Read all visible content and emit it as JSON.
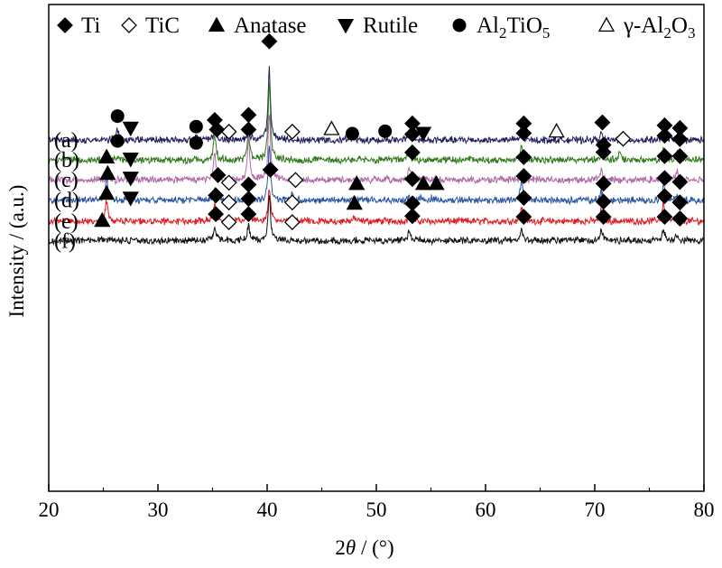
{
  "chart_data": {
    "type": "line",
    "xlabel": "2θ / (°)",
    "xlabel_parts": {
      "symbol": "2θ",
      "unit": " / (°)"
    },
    "ylabel": "Intensity / (a.u.)",
    "xlim": [
      20,
      80
    ],
    "xticks": [
      20,
      30,
      40,
      50,
      60,
      70,
      80
    ],
    "y_tick_labels": "none",
    "grid": false,
    "legend_position": "top",
    "legend": [
      {
        "marker": "diamond-filled",
        "name": "Ti"
      },
      {
        "marker": "diamond-open",
        "name": "TiC"
      },
      {
        "marker": "triangle-up-filled",
        "name": "Anatase"
      },
      {
        "marker": "triangle-down-filled",
        "name": "Rutile"
      },
      {
        "marker": "circle-filled",
        "name": "Al2TiO5",
        "display": [
          "Al",
          "2",
          "TiO",
          "5"
        ]
      },
      {
        "marker": "triangle-up-open",
        "name": "γ-Al2O3",
        "display": [
          "γ-Al",
          "2",
          "O",
          "3"
        ]
      }
    ],
    "series": [
      {
        "name": "(a)",
        "color": "#1f1f5c",
        "baseline": 0.85,
        "peaks": [
          {
            "x": 26.3,
            "h": 0.42
          },
          {
            "x": 33.5,
            "h": 0.18
          },
          {
            "x": 35.2,
            "h": 0.36
          },
          {
            "x": 38.3,
            "h": 0.48
          },
          {
            "x": 40.2,
            "h": 2.9
          },
          {
            "x": 45.5,
            "h": 0.05
          },
          {
            "x": 47.6,
            "h": 0.08
          },
          {
            "x": 53.0,
            "h": 0.26
          },
          {
            "x": 63.3,
            "h": 0.26
          },
          {
            "x": 70.6,
            "h": 0.26
          },
          {
            "x": 76.3,
            "h": 0.24
          },
          {
            "x": 77.5,
            "h": 0.18
          }
        ],
        "markers": [
          {
            "x": 26.3,
            "y": 1.83,
            "type": "circle-filled"
          },
          {
            "x": 27.5,
            "y": 1.34,
            "type": "triangle-down-filled"
          },
          {
            "x": 33.5,
            "y": 1.4,
            "type": "circle-filled"
          },
          {
            "x": 35.2,
            "y": 1.67,
            "type": "diamond-filled"
          },
          {
            "x": 36.5,
            "y": 1.19,
            "type": "diamond-open"
          },
          {
            "x": 38.3,
            "y": 1.88,
            "type": "diamond-filled"
          },
          {
            "x": 40.2,
            "y": 4.9,
            "type": "diamond-filled"
          },
          {
            "x": 42.3,
            "y": 1.19,
            "type": "diamond-open"
          },
          {
            "x": 45.9,
            "y": 1.31,
            "type": "triangle-up-open"
          },
          {
            "x": 47.8,
            "y": 1.11,
            "type": "circle-filled"
          },
          {
            "x": 50.8,
            "y": 1.21,
            "type": "circle-filled"
          },
          {
            "x": 53.3,
            "y": 1.53,
            "type": "diamond-filled"
          },
          {
            "x": 54.3,
            "y": 1.13,
            "type": "triangle-down-filled"
          },
          {
            "x": 63.5,
            "y": 1.53,
            "type": "diamond-filled"
          },
          {
            "x": 66.5,
            "y": 1.21,
            "type": "triangle-up-open"
          },
          {
            "x": 70.7,
            "y": 1.57,
            "type": "diamond-filled"
          },
          {
            "x": 76.4,
            "y": 1.45,
            "type": "diamond-filled"
          },
          {
            "x": 77.8,
            "y": 1.34,
            "type": "diamond-filled"
          }
        ]
      },
      {
        "name": "(b)",
        "color": "#2f7a1a",
        "baseline": 0.03,
        "peaks": [
          {
            "x": 26.3,
            "h": 0.06
          },
          {
            "x": 33.5,
            "h": 0.04
          },
          {
            "x": 35.2,
            "h": 1.05
          },
          {
            "x": 38.3,
            "h": 1.15
          },
          {
            "x": 40.2,
            "h": 3.2
          },
          {
            "x": 53.0,
            "h": 0.5
          },
          {
            "x": 63.3,
            "h": 0.62
          },
          {
            "x": 70.6,
            "h": 0.18
          },
          {
            "x": 72.3,
            "h": 0.35
          },
          {
            "x": 76.3,
            "h": 0.52
          },
          {
            "x": 77.5,
            "h": 0.28
          }
        ],
        "markers": [
          {
            "x": 26.3,
            "y": 0.81,
            "type": "circle-filled"
          },
          {
            "x": 33.5,
            "y": 0.73,
            "type": "circle-filled"
          },
          {
            "x": 35.4,
            "y": 1.28,
            "type": "diamond-filled"
          },
          {
            "x": 38.3,
            "y": 1.28,
            "type": "diamond-filled"
          },
          {
            "x": 53.3,
            "y": 1.09,
            "type": "diamond-filled"
          },
          {
            "x": 63.5,
            "y": 1.13,
            "type": "diamond-filled"
          },
          {
            "x": 70.8,
            "y": 0.65,
            "type": "diamond-filled"
          },
          {
            "x": 72.6,
            "y": 0.9,
            "type": "diamond-open"
          },
          {
            "x": 76.4,
            "y": 1.03,
            "type": "diamond-filled"
          },
          {
            "x": 77.8,
            "y": 0.89,
            "type": "diamond-filled"
          }
        ]
      },
      {
        "name": "(c)",
        "color": "#b06aa8",
        "baseline": -0.78,
        "peaks": [
          {
            "x": 25.3,
            "h": 0.1
          },
          {
            "x": 27.4,
            "h": 0.05
          },
          {
            "x": 35.2,
            "h": 1.12
          },
          {
            "x": 38.3,
            "h": 1.65
          },
          {
            "x": 40.2,
            "h": 2.75
          },
          {
            "x": 53.0,
            "h": 0.48
          },
          {
            "x": 63.3,
            "h": 0.15
          },
          {
            "x": 70.6,
            "h": 0.42
          },
          {
            "x": 76.3,
            "h": 0.28
          },
          {
            "x": 77.5,
            "h": 0.35
          }
        ],
        "markers": [
          {
            "x": 25.3,
            "y": 0.15,
            "type": "triangle-up-filled"
          },
          {
            "x": 27.5,
            "y": 0.07,
            "type": "triangle-down-filled"
          },
          {
            "x": 53.3,
            "y": 0.34,
            "type": "diamond-filled"
          },
          {
            "x": 63.5,
            "y": 0.15,
            "type": "diamond-filled"
          },
          {
            "x": 70.8,
            "y": 0.35,
            "type": "diamond-filled"
          },
          {
            "x": 76.4,
            "y": 0.19,
            "type": "diamond-filled"
          },
          {
            "x": 77.8,
            "y": 0.19,
            "type": "diamond-filled"
          }
        ]
      },
      {
        "name": "(d)",
        "color": "#2855a3",
        "baseline": -1.62,
        "peaks": [
          {
            "x": 25.3,
            "h": 0.92
          },
          {
            "x": 27.4,
            "h": 0.15
          },
          {
            "x": 35.2,
            "h": 0.48
          },
          {
            "x": 36.5,
            "h": 0.08
          },
          {
            "x": 38.3,
            "h": 0.15
          },
          {
            "x": 40.2,
            "h": 2.2
          },
          {
            "x": 42.3,
            "h": 0.28
          },
          {
            "x": 48.0,
            "h": 0.08
          },
          {
            "x": 53.0,
            "h": 0.15
          },
          {
            "x": 54.0,
            "h": 0.1
          },
          {
            "x": 55.1,
            "h": 0.08
          },
          {
            "x": 63.3,
            "h": 0.82
          },
          {
            "x": 70.6,
            "h": 0.32
          },
          {
            "x": 76.3,
            "h": 0.6
          },
          {
            "x": 77.5,
            "h": 0.18
          }
        ],
        "markers": [
          {
            "x": 25.4,
            "y": -0.52,
            "type": "triangle-up-filled"
          },
          {
            "x": 27.5,
            "y": -0.71,
            "type": "triangle-down-filled"
          },
          {
            "x": 35.5,
            "y": -0.59,
            "type": "diamond-filled"
          },
          {
            "x": 36.5,
            "y": -0.9,
            "type": "diamond-open"
          },
          {
            "x": 38.3,
            "y": -0.98,
            "type": "diamond-filled"
          },
          {
            "x": 40.3,
            "y": -0.37,
            "type": "diamond-filled"
          },
          {
            "x": 42.6,
            "y": -0.79,
            "type": "diamond-open"
          },
          {
            "x": 48.2,
            "y": -0.94,
            "type": "triangle-up-filled"
          },
          {
            "x": 53.3,
            "y": -0.75,
            "type": "diamond-filled"
          },
          {
            "x": 54.3,
            "y": -0.94,
            "type": "triangle-up-filled"
          },
          {
            "x": 55.5,
            "y": -0.94,
            "type": "triangle-up-filled"
          },
          {
            "x": 63.5,
            "y": -0.63,
            "type": "diamond-filled"
          },
          {
            "x": 70.8,
            "y": -0.94,
            "type": "diamond-filled"
          },
          {
            "x": 76.4,
            "y": -0.71,
            "type": "diamond-filled"
          },
          {
            "x": 77.8,
            "y": -0.87,
            "type": "diamond-filled"
          }
        ]
      },
      {
        "name": "(e)",
        "color": "#e01b24",
        "baseline": -2.48,
        "peaks": [
          {
            "x": 25.3,
            "h": 0.86
          },
          {
            "x": 27.4,
            "h": 0.08
          },
          {
            "x": 35.2,
            "h": 0.75
          },
          {
            "x": 36.5,
            "h": 0.1
          },
          {
            "x": 38.3,
            "h": 0.55
          },
          {
            "x": 40.2,
            "h": 1.35
          },
          {
            "x": 42.3,
            "h": 0.08
          },
          {
            "x": 48.0,
            "h": 0.15
          },
          {
            "x": 53.0,
            "h": 0.15
          },
          {
            "x": 63.3,
            "h": 0.55
          },
          {
            "x": 70.6,
            "h": 0.48
          },
          {
            "x": 76.3,
            "h": 0.78
          },
          {
            "x": 77.5,
            "h": 0.15
          }
        ],
        "markers": [
          {
            "x": 25.3,
            "y": -1.34,
            "type": "triangle-up-filled"
          },
          {
            "x": 27.5,
            "y": -1.53,
            "type": "triangle-down-filled"
          },
          {
            "x": 35.3,
            "y": -1.42,
            "type": "diamond-filled"
          },
          {
            "x": 36.5,
            "y": -1.71,
            "type": "diamond-open"
          },
          {
            "x": 38.3,
            "y": -1.56,
            "type": "diamond-filled"
          },
          {
            "x": 42.3,
            "y": -1.71,
            "type": "diamond-open"
          },
          {
            "x": 48.0,
            "y": -1.75,
            "type": "triangle-up-filled"
          },
          {
            "x": 53.3,
            "y": -1.75,
            "type": "diamond-filled"
          },
          {
            "x": 63.5,
            "y": -1.52,
            "type": "diamond-filled"
          },
          {
            "x": 70.8,
            "y": -1.68,
            "type": "diamond-filled"
          },
          {
            "x": 76.4,
            "y": -1.45,
            "type": "diamond-filled"
          },
          {
            "x": 77.8,
            "y": -1.71,
            "type": "diamond-filled"
          }
        ]
      },
      {
        "name": "(f)",
        "color": "#111111",
        "baseline": -3.27,
        "peaks": [
          {
            "x": 24.9,
            "h": 0.08
          },
          {
            "x": 35.2,
            "h": 0.55
          },
          {
            "x": 38.3,
            "h": 0.62
          },
          {
            "x": 40.2,
            "h": 1.85
          },
          {
            "x": 53.0,
            "h": 0.42
          },
          {
            "x": 63.3,
            "h": 0.45
          },
          {
            "x": 70.6,
            "h": 0.48
          },
          {
            "x": 76.3,
            "h": 0.48
          },
          {
            "x": 77.5,
            "h": 0.28
          }
        ],
        "markers": [
          {
            "x": 24.9,
            "y": -2.45,
            "type": "triangle-up-filled"
          },
          {
            "x": 35.3,
            "y": -2.19,
            "type": "diamond-filled"
          },
          {
            "x": 36.5,
            "y": -2.52,
            "type": "diamond-open"
          },
          {
            "x": 38.3,
            "y": -2.19,
            "type": "diamond-filled"
          },
          {
            "x": 42.3,
            "y": -2.52,
            "type": "diamond-open"
          },
          {
            "x": 53.3,
            "y": -2.27,
            "type": "diamond-filled"
          },
          {
            "x": 63.5,
            "y": -2.3,
            "type": "diamond-filled"
          },
          {
            "x": 70.8,
            "y": -2.3,
            "type": "diamond-filled"
          },
          {
            "x": 76.4,
            "y": -2.3,
            "type": "diamond-filled"
          },
          {
            "x": 77.8,
            "y": -2.37,
            "type": "diamond-filled"
          }
        ]
      }
    ]
  }
}
